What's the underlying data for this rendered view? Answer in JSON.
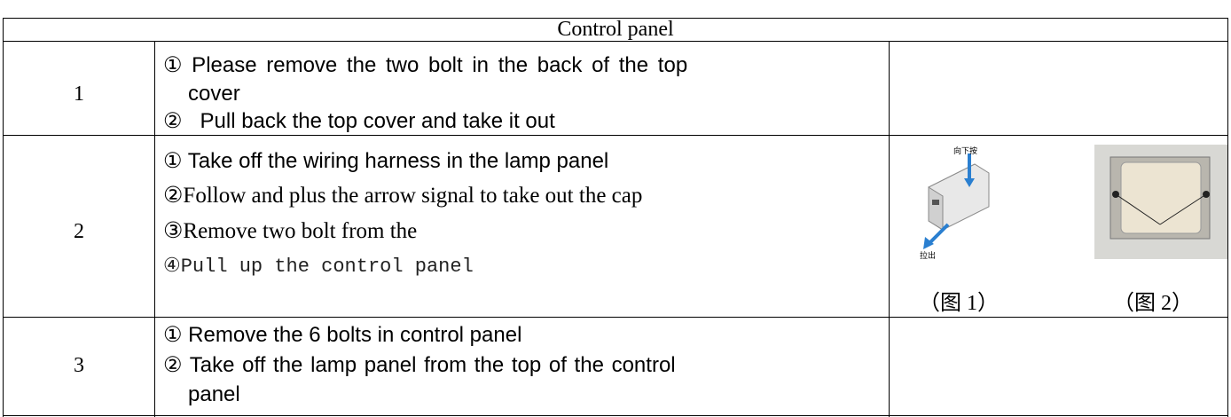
{
  "table": {
    "header": "Control panel",
    "rows": [
      {
        "step": "1",
        "lines": [
          "① Please remove the two bolt in the back of the top",
          "cover",
          "②   Pull back the top cover and take it out"
        ]
      },
      {
        "step": "2",
        "lines": [
          "① Take off the wiring harness in the lamp panel",
          "②Follow and plus the arrow signal to take out the cap",
          "③Remove two bolt from the",
          "④Pull up the control panel"
        ]
      },
      {
        "step": "3",
        "lines": [
          "① Remove the 6 bolts in control panel",
          "② Take off the lamp panel from the top of the control",
          "panel"
        ]
      }
    ]
  },
  "figures": [
    {
      "caption": "（图 1）",
      "labels": [
        "向下按",
        "拉出"
      ]
    },
    {
      "caption": "（图 2）"
    }
  ]
}
